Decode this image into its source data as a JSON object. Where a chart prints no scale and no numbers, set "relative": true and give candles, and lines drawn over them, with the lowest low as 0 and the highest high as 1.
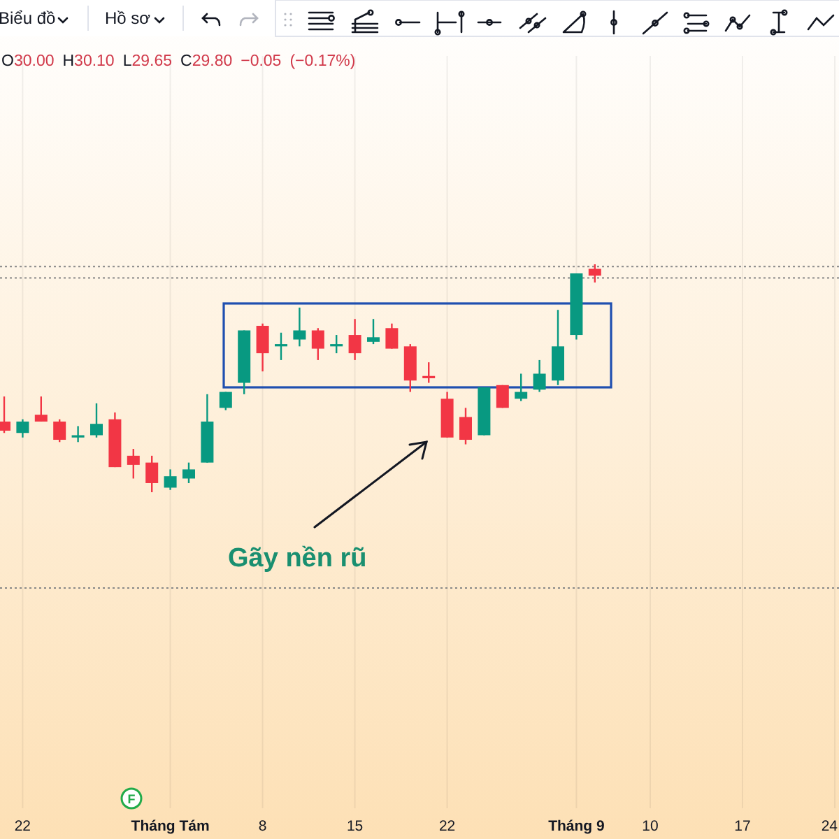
{
  "chart_data": {
    "type": "candlestick",
    "relative": true,
    "categories": [
      null,
      "22",
      null,
      null,
      null,
      null,
      null,
      null,
      null,
      "Tháng Tám",
      null,
      null,
      null,
      null,
      "8",
      null,
      null,
      null,
      null,
      "15",
      null,
      null,
      null,
      null,
      "22",
      null,
      null,
      null,
      null,
      null,
      null,
      "Tháng 9",
      null,
      null,
      null,
      "10",
      null,
      null,
      null,
      null,
      "17",
      null,
      null,
      null,
      null,
      "24"
    ],
    "ohlc": [
      [
        0.31,
        0.42,
        0.26,
        0.27
      ],
      [
        0.26,
        0.32,
        0.24,
        0.31
      ],
      [
        0.34,
        0.42,
        0.31,
        0.31
      ],
      [
        0.31,
        0.32,
        0.22,
        0.23
      ],
      [
        0.24,
        0.29,
        0.22,
        0.25
      ],
      [
        0.25,
        0.39,
        0.24,
        0.3
      ],
      [
        0.32,
        0.35,
        0.11,
        0.11
      ],
      [
        0.16,
        0.19,
        0.06,
        0.12
      ],
      [
        0.13,
        0.16,
        0,
        0.04
      ],
      [
        0.02,
        0.1,
        0.01,
        0.07
      ],
      [
        0.06,
        0.13,
        0.04,
        0.1
      ],
      [
        0.13,
        0.43,
        0.13,
        0.31
      ],
      [
        0.37,
        0.44,
        0.36,
        0.44
      ],
      [
        0.48,
        0.71,
        0.43,
        0.71
      ],
      [
        0.73,
        0.74,
        0.53,
        0.61
      ],
      [
        0.64,
        0.7,
        0.58,
        0.65
      ],
      [
        0.67,
        0.81,
        0.64,
        0.71
      ],
      [
        0.71,
        0.72,
        0.58,
        0.63
      ],
      [
        0.64,
        0.69,
        0.61,
        0.65
      ],
      [
        0.69,
        0.76,
        0.58,
        0.61
      ],
      [
        0.66,
        0.76,
        0.65,
        0.68
      ],
      [
        0.72,
        0.74,
        0.63,
        0.63
      ],
      [
        0.64,
        0.65,
        0.44,
        0.49
      ],
      [
        0.51,
        0.57,
        0.48,
        0.5
      ],
      [
        0.41,
        0.44,
        0.24,
        0.24
      ],
      [
        0.33,
        0.37,
        0.21,
        0.23
      ],
      [
        0.25,
        0.46,
        0.25,
        0.46
      ],
      [
        0.47,
        0.47,
        0.37,
        0.37
      ],
      [
        0.41,
        0.52,
        0.4,
        0.44
      ],
      [
        0.45,
        0.58,
        0.44,
        0.52
      ],
      [
        0.49,
        0.8,
        0.47,
        0.64
      ],
      [
        0.69,
        0.96,
        0.67,
        0.96
      ],
      [
        0.98,
        1,
        0.92,
        0.95
      ],
      null,
      null,
      null,
      null,
      null,
      null,
      null,
      null,
      null,
      null,
      null,
      null,
      null
    ],
    "colors": [
      "#f23645",
      "#089981",
      "#f23645",
      "#f23645",
      "#089981",
      "#089981",
      "#f23645",
      "#f23645",
      "#f23645",
      "#089981",
      "#089981",
      "#089981",
      "#089981",
      "#089981",
      "#f23645",
      "#089981",
      "#089981",
      "#f23645",
      "#089981",
      "#f23645",
      "#089981",
      "#f23645",
      "#f23645",
      "#f23645",
      "#f23645",
      "#f23645",
      "#089981",
      "#f23645",
      "#089981",
      "#089981",
      "#089981",
      "#089981",
      "#f23645",
      null,
      null,
      null,
      null,
      null,
      null,
      null,
      null,
      null,
      null,
      null,
      null,
      null
    ],
    "grid": "x",
    "ref_lines": [
      {
        "axis": "y",
        "value": 0.99,
        "line_style": "dotted",
        "color": "#888888"
      },
      {
        "axis": "y",
        "value": 0.94,
        "line_style": "dotted",
        "color": "#888888"
      },
      {
        "axis": "y",
        "value": -0.42,
        "line_style": "dotted",
        "color": "#888888"
      }
    ],
    "annotations": [
      "Gãy nền rũ",
      "O30.00 H30.10 L29.65 C29.80 −0.05 (−0.17%)",
      "Biểu đồ",
      "Hồ sơ",
      "F"
    ]
  }
}
